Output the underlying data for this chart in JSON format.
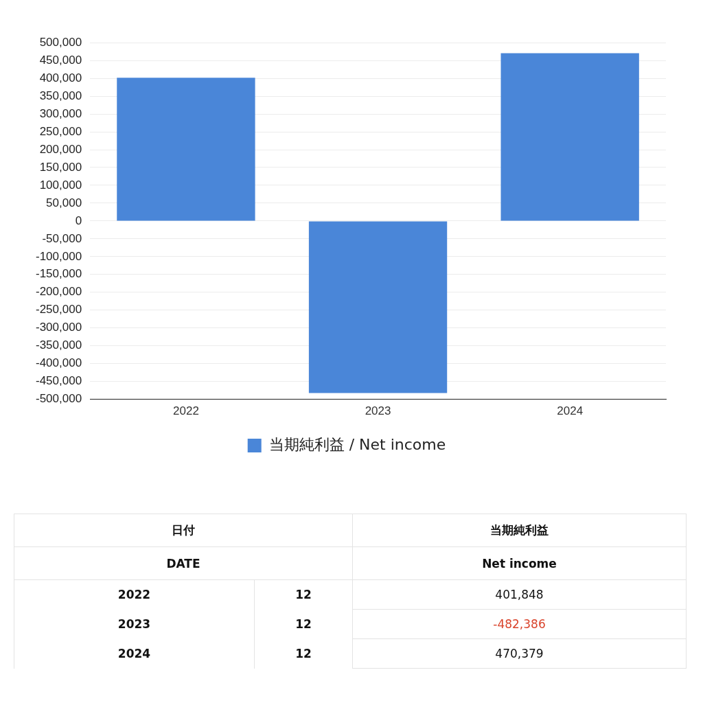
{
  "chart_data": {
    "type": "bar",
    "categories": [
      "2022",
      "2023",
      "2024"
    ],
    "series": [
      {
        "name": "当期純利益 / Net income",
        "color": "#4a86d8",
        "values": [
          401848,
          -482386,
          470379
        ]
      }
    ],
    "value_labels": [
      "401,848",
      "-482,386",
      "470,379"
    ],
    "ylim": [
      -500000,
      500000
    ],
    "yticks": [
      {
        "value": -500000,
        "label": "-500,000"
      },
      {
        "value": -450000,
        "label": "-450,000"
      },
      {
        "value": -400000,
        "label": "-400,000"
      },
      {
        "value": -350000,
        "label": "-350,000"
      },
      {
        "value": -300000,
        "label": "-300,000"
      },
      {
        "value": -250000,
        "label": "-250,000"
      },
      {
        "value": -200000,
        "label": "-200,000"
      },
      {
        "value": -150000,
        "label": "-150,000"
      },
      {
        "value": -100000,
        "label": "-100,000"
      },
      {
        "value": -50000,
        "label": "-50,000"
      },
      {
        "value": 0,
        "label": "0"
      },
      {
        "value": 50000,
        "label": "50,000"
      },
      {
        "value": 100000,
        "label": "100,000"
      },
      {
        "value": 150000,
        "label": "150,000"
      },
      {
        "value": 200000,
        "label": "200,000"
      },
      {
        "value": 250000,
        "label": "250,000"
      },
      {
        "value": 300000,
        "label": "300,000"
      },
      {
        "value": 350000,
        "label": "350,000"
      },
      {
        "value": 400000,
        "label": "400,000"
      },
      {
        "value": 450000,
        "label": "450,000"
      },
      {
        "value": 500000,
        "label": "500,000"
      }
    ],
    "grid": "y",
    "legend": "bottom",
    "annotations": [
      "日付",
      "DATE",
      "当期純利益",
      "Net income",
      "12",
      "12",
      "12"
    ]
  }
}
